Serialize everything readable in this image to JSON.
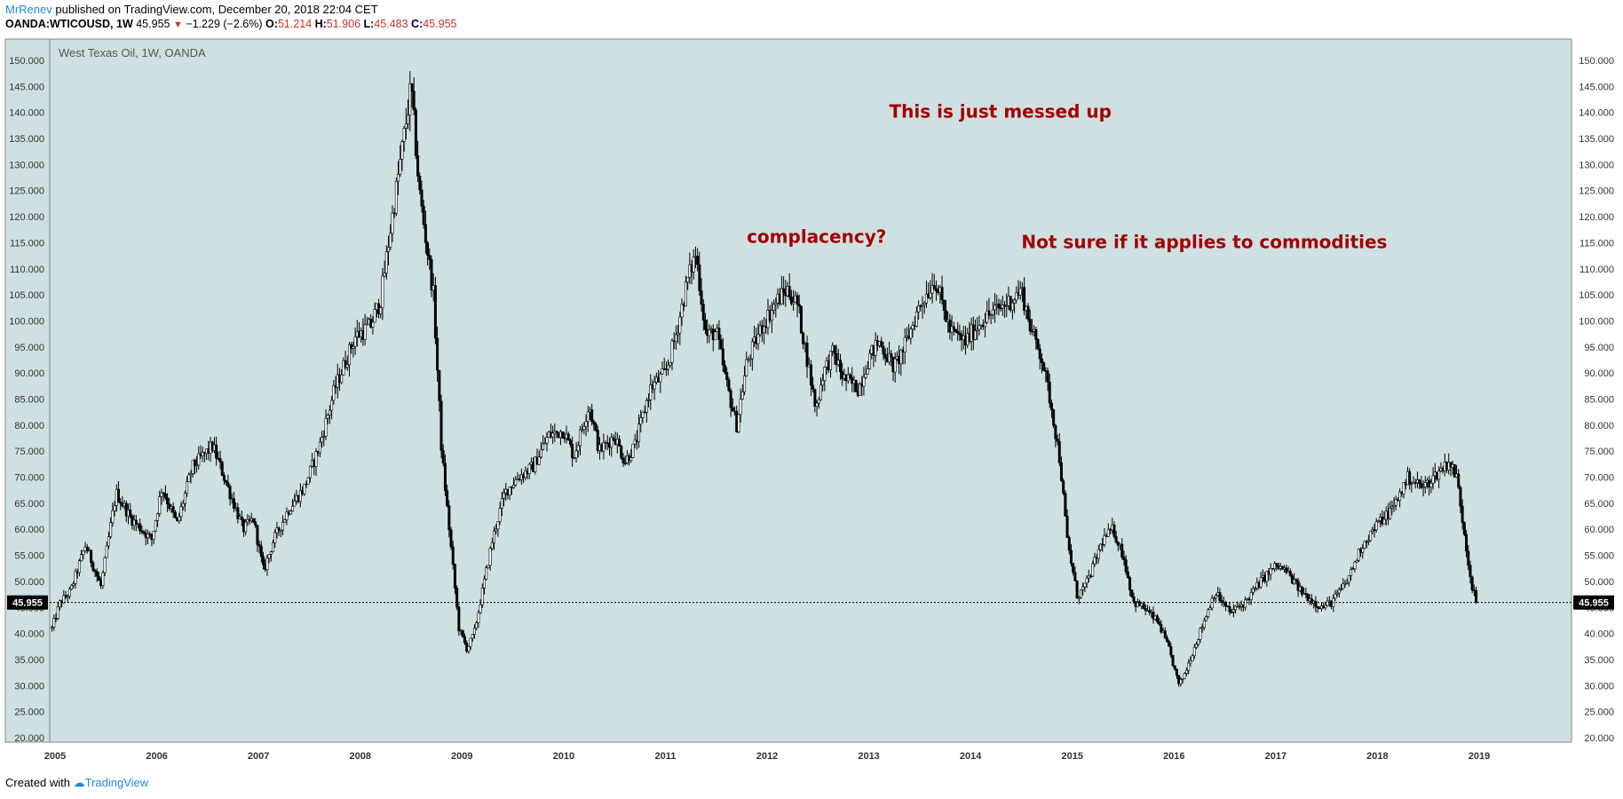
{
  "header": {
    "author": "MrRenev",
    "published_text": "published on TradingView.com, December 20, 2018 22:04 CET",
    "symbol": "OANDA:WTICOUSD, 1W",
    "last_price": "45.955",
    "change_arrow": "▼",
    "change": "−1.229 (−2.6%)",
    "open_label": "O:",
    "open": "51.214",
    "high_label": "H:",
    "high": "51.906",
    "low_label": "L:",
    "low": "45.483",
    "close_label": "C:",
    "close": "45.955"
  },
  "footer": {
    "created_with": "Created with",
    "brand": "TradingView"
  },
  "colors": {
    "plot_background": "#cfe0e2",
    "candle": "#000000",
    "annotation": "#a30000",
    "price_tag_bg": "#000000",
    "price_tag_text": "#ffffff",
    "axis_text": "#333333"
  },
  "chart_data": {
    "type": "candlestick",
    "title": "West Texas Oil, 1W, OANDA",
    "timeframe": "1W",
    "ylim": [
      19,
      152
    ],
    "y_ticks": [
      "150.000",
      "145.000",
      "140.000",
      "135.000",
      "130.000",
      "125.000",
      "120.000",
      "115.000",
      "110.000",
      "105.000",
      "100.000",
      "95.000",
      "90.000",
      "85.000",
      "80.000",
      "75.000",
      "70.000",
      "65.000",
      "60.000",
      "55.000",
      "50.000",
      "45.000",
      "40.000",
      "35.000",
      "30.000",
      "25.000",
      "20.000"
    ],
    "x_ticks": [
      "2005",
      "2006",
      "2007",
      "2008",
      "2009",
      "2010",
      "2011",
      "2012",
      "2013",
      "2014",
      "2015",
      "2016",
      "2017",
      "2018",
      "2019"
    ],
    "last_price_line": 45.955,
    "last_price_label": "45.955",
    "path_points": [
      [
        2004.97,
        41
      ],
      [
        2005.05,
        46
      ],
      [
        2005.15,
        48
      ],
      [
        2005.3,
        57
      ],
      [
        2005.45,
        49
      ],
      [
        2005.6,
        67
      ],
      [
        2005.75,
        62
      ],
      [
        2005.95,
        58
      ],
      [
        2006.05,
        68
      ],
      [
        2006.2,
        61
      ],
      [
        2006.35,
        72
      ],
      [
        2006.55,
        76
      ],
      [
        2006.7,
        68
      ],
      [
        2006.85,
        60
      ],
      [
        2006.95,
        62
      ],
      [
        2007.05,
        52
      ],
      [
        2007.15,
        58
      ],
      [
        2007.3,
        64
      ],
      [
        2007.45,
        68
      ],
      [
        2007.6,
        76
      ],
      [
        2007.75,
        87
      ],
      [
        2007.85,
        92
      ],
      [
        2007.95,
        97
      ],
      [
        2008.1,
        99
      ],
      [
        2008.2,
        104
      ],
      [
        2008.3,
        118
      ],
      [
        2008.42,
        134
      ],
      [
        2008.5,
        145
      ],
      [
        2008.58,
        125
      ],
      [
        2008.65,
        115
      ],
      [
        2008.72,
        105
      ],
      [
        2008.8,
        75
      ],
      [
        2008.9,
        55
      ],
      [
        2008.97,
        41
      ],
      [
        2009.05,
        37
      ],
      [
        2009.12,
        40
      ],
      [
        2009.2,
        48
      ],
      [
        2009.3,
        58
      ],
      [
        2009.42,
        67
      ],
      [
        2009.55,
        70
      ],
      [
        2009.7,
        72
      ],
      [
        2009.85,
        78
      ],
      [
        2010.0,
        79
      ],
      [
        2010.1,
        74
      ],
      [
        2010.25,
        84
      ],
      [
        2010.35,
        75
      ],
      [
        2010.5,
        78
      ],
      [
        2010.6,
        73
      ],
      [
        2010.7,
        76
      ],
      [
        2010.85,
        87
      ],
      [
        2011.0,
        90
      ],
      [
        2011.1,
        97
      ],
      [
        2011.22,
        108
      ],
      [
        2011.3,
        113
      ],
      [
        2011.4,
        97
      ],
      [
        2011.5,
        98
      ],
      [
        2011.6,
        88
      ],
      [
        2011.7,
        80
      ],
      [
        2011.8,
        92
      ],
      [
        2011.95,
        99
      ],
      [
        2012.1,
        104
      ],
      [
        2012.2,
        106
      ],
      [
        2012.3,
        103
      ],
      [
        2012.4,
        92
      ],
      [
        2012.48,
        83
      ],
      [
        2012.55,
        90
      ],
      [
        2012.65,
        94
      ],
      [
        2012.75,
        89
      ],
      [
        2012.9,
        87
      ],
      [
        2013.0,
        93
      ],
      [
        2013.1,
        96
      ],
      [
        2013.25,
        91
      ],
      [
        2013.35,
        95
      ],
      [
        2013.5,
        103
      ],
      [
        2013.65,
        108
      ],
      [
        2013.8,
        98
      ],
      [
        2013.95,
        96
      ],
      [
        2014.1,
        100
      ],
      [
        2014.25,
        102
      ],
      [
        2014.4,
        104
      ],
      [
        2014.5,
        106
      ],
      [
        2014.6,
        98
      ],
      [
        2014.7,
        93
      ],
      [
        2014.8,
        83
      ],
      [
        2014.88,
        73
      ],
      [
        2014.95,
        58
      ],
      [
        2015.05,
        47
      ],
      [
        2015.15,
        50
      ],
      [
        2015.3,
        58
      ],
      [
        2015.4,
        60
      ],
      [
        2015.5,
        55
      ],
      [
        2015.6,
        46
      ],
      [
        2015.7,
        45
      ],
      [
        2015.85,
        42
      ],
      [
        2015.95,
        37
      ],
      [
        2016.05,
        30
      ],
      [
        2016.12,
        33
      ],
      [
        2016.25,
        40
      ],
      [
        2016.4,
        48
      ],
      [
        2016.55,
        44
      ],
      [
        2016.7,
        46
      ],
      [
        2016.85,
        50
      ],
      [
        2017.0,
        53
      ],
      [
        2017.1,
        52
      ],
      [
        2017.25,
        48
      ],
      [
        2017.45,
        45
      ],
      [
        2017.55,
        46
      ],
      [
        2017.7,
        50
      ],
      [
        2017.85,
        57
      ],
      [
        2018.0,
        61
      ],
      [
        2018.15,
        64
      ],
      [
        2018.3,
        70
      ],
      [
        2018.45,
        68
      ],
      [
        2018.6,
        71
      ],
      [
        2018.7,
        73
      ],
      [
        2018.78,
        70
      ],
      [
        2018.85,
        60
      ],
      [
        2018.92,
        50
      ],
      [
        2018.97,
        46
      ]
    ],
    "annotations": [
      {
        "text": "This is just messed up",
        "x": 2013.2,
        "y": 139
      },
      {
        "text": "complacency?",
        "x": 2011.8,
        "y": 115
      },
      {
        "text": "Not sure if it applies to commodities",
        "x": 2014.5,
        "y": 114
      }
    ]
  }
}
